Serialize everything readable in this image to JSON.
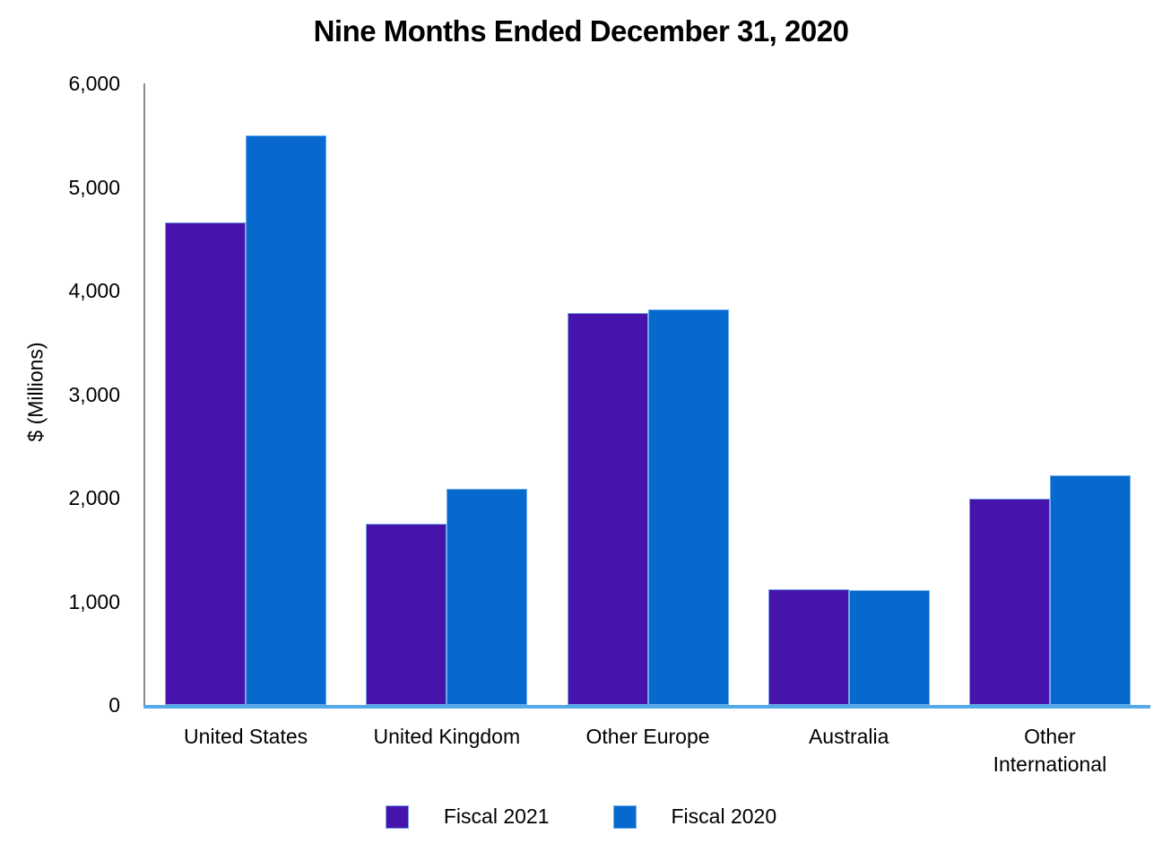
{
  "title": "Nine Months Ended December 31, 2020",
  "chart_data": {
    "type": "bar",
    "title": "Nine Months Ended December 31, 2020",
    "xlabel": "",
    "ylabel": "$ (Millions)",
    "categories": [
      "United States",
      "United Kingdom",
      "Other Europe",
      "Australia",
      "Other International"
    ],
    "series": [
      {
        "name": "Fiscal 2021",
        "color": "#4614ac",
        "values": [
          4660,
          1750,
          3780,
          1120,
          1995
        ]
      },
      {
        "name": "Fiscal 2020",
        "color": "#0768ce",
        "values": [
          5500,
          2090,
          3820,
          1110,
          2220
        ]
      }
    ],
    "ylim": [
      0,
      6000
    ],
    "yticks": [
      0,
      1000,
      2000,
      3000,
      4000,
      5000,
      6000
    ],
    "ytick_labels": [
      "0",
      "1,000",
      "2,000",
      "3,000",
      "4,000",
      "5,000",
      "6,000"
    ],
    "grid": false,
    "legend_position": "bottom",
    "bar_border_color": "#7dbbee",
    "baseline_color": "#54a9e7",
    "yaxis_line_color": "#8c8c8c"
  }
}
